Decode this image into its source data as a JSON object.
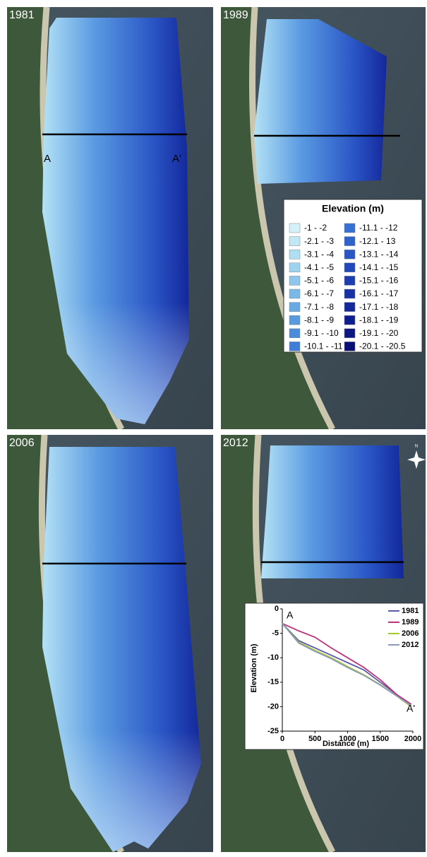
{
  "panels": [
    {
      "year": "1981",
      "profile_labels": [
        "A",
        "A'"
      ]
    },
    {
      "year": "1989"
    },
    {
      "year": "2006"
    },
    {
      "year": "2012"
    }
  ],
  "compass": "N",
  "legend": {
    "title": "Elevation (m)",
    "entries": [
      {
        "label": "-1 - -2",
        "color": "#d4f1fa"
      },
      {
        "label": "-2.1 - -3",
        "color": "#c2e8f6"
      },
      {
        "label": "-3.1 - -4",
        "color": "#b0dff3"
      },
      {
        "label": "-4.1 - -5",
        "color": "#9ed3f0"
      },
      {
        "label": "-5.1 - -6",
        "color": "#8cc6ec"
      },
      {
        "label": "-6.1 - -7",
        "color": "#7ab8e8"
      },
      {
        "label": "-7.1 - -8",
        "color": "#68a9e4"
      },
      {
        "label": "-8.1 - -9",
        "color": "#589ae0"
      },
      {
        "label": "-9.1 - -10",
        "color": "#4a8bdc"
      },
      {
        "label": "-10.1 - -11",
        "color": "#3f7dd8"
      },
      {
        "label": "-11.1 - -12",
        "color": "#3670d3"
      },
      {
        "label": "-12.1 - 13",
        "color": "#2f63cc"
      },
      {
        "label": "-13.1 - -14",
        "color": "#2856c4"
      },
      {
        "label": "-14.1 - -15",
        "color": "#2249bb"
      },
      {
        "label": "-15.1 - -16",
        "color": "#1d3db1"
      },
      {
        "label": "-16.1 - -17",
        "color": "#1832a6"
      },
      {
        "label": "-17.1 - -18",
        "color": "#14289b"
      },
      {
        "label": "-18.1 - -19",
        "color": "#101f8f"
      },
      {
        "label": "-19.1 - -20",
        "color": "#0c1782"
      },
      {
        "label": "-20.1 - -20.5",
        "color": "#081073"
      }
    ]
  },
  "chart_data": {
    "type": "line",
    "xlabel": "Distance (m)",
    "ylabel": "Elevation (m)",
    "annotations": [
      "A",
      "A'"
    ],
    "x": [
      0,
      250,
      500,
      750,
      1000,
      1250,
      1500,
      1750,
      1975
    ],
    "series": [
      {
        "name": "1981",
        "color": "#5a5aa8",
        "values": [
          -3,
          -6.5,
          -8,
          -9.5,
          -11,
          -12.5,
          -15,
          -17.5,
          -20
        ]
      },
      {
        "name": "1989",
        "color": "#b8357a",
        "values": [
          -3,
          -4.5,
          -5.8,
          -8,
          -10,
          -12,
          -14.5,
          -17.5,
          -19.5
        ]
      },
      {
        "name": "2006",
        "color": "#a6c82a",
        "values": [
          -3,
          -6.8,
          -8.5,
          -10,
          -11.8,
          -13.5,
          -15.5,
          -17.8,
          -20
        ]
      },
      {
        "name": "2012",
        "color": "#8a9ab8",
        "values": [
          -3,
          -7,
          -8.7,
          -10.2,
          -12,
          -13.6,
          -15.6,
          -17.8,
          -19.8
        ]
      }
    ],
    "xlim": [
      0,
      2000
    ],
    "ylim": [
      -25,
      0
    ],
    "xticks": [
      0,
      500,
      1000,
      1500,
      2000
    ],
    "yticks": [
      0,
      -5,
      -10,
      -15,
      -20,
      -25
    ]
  }
}
